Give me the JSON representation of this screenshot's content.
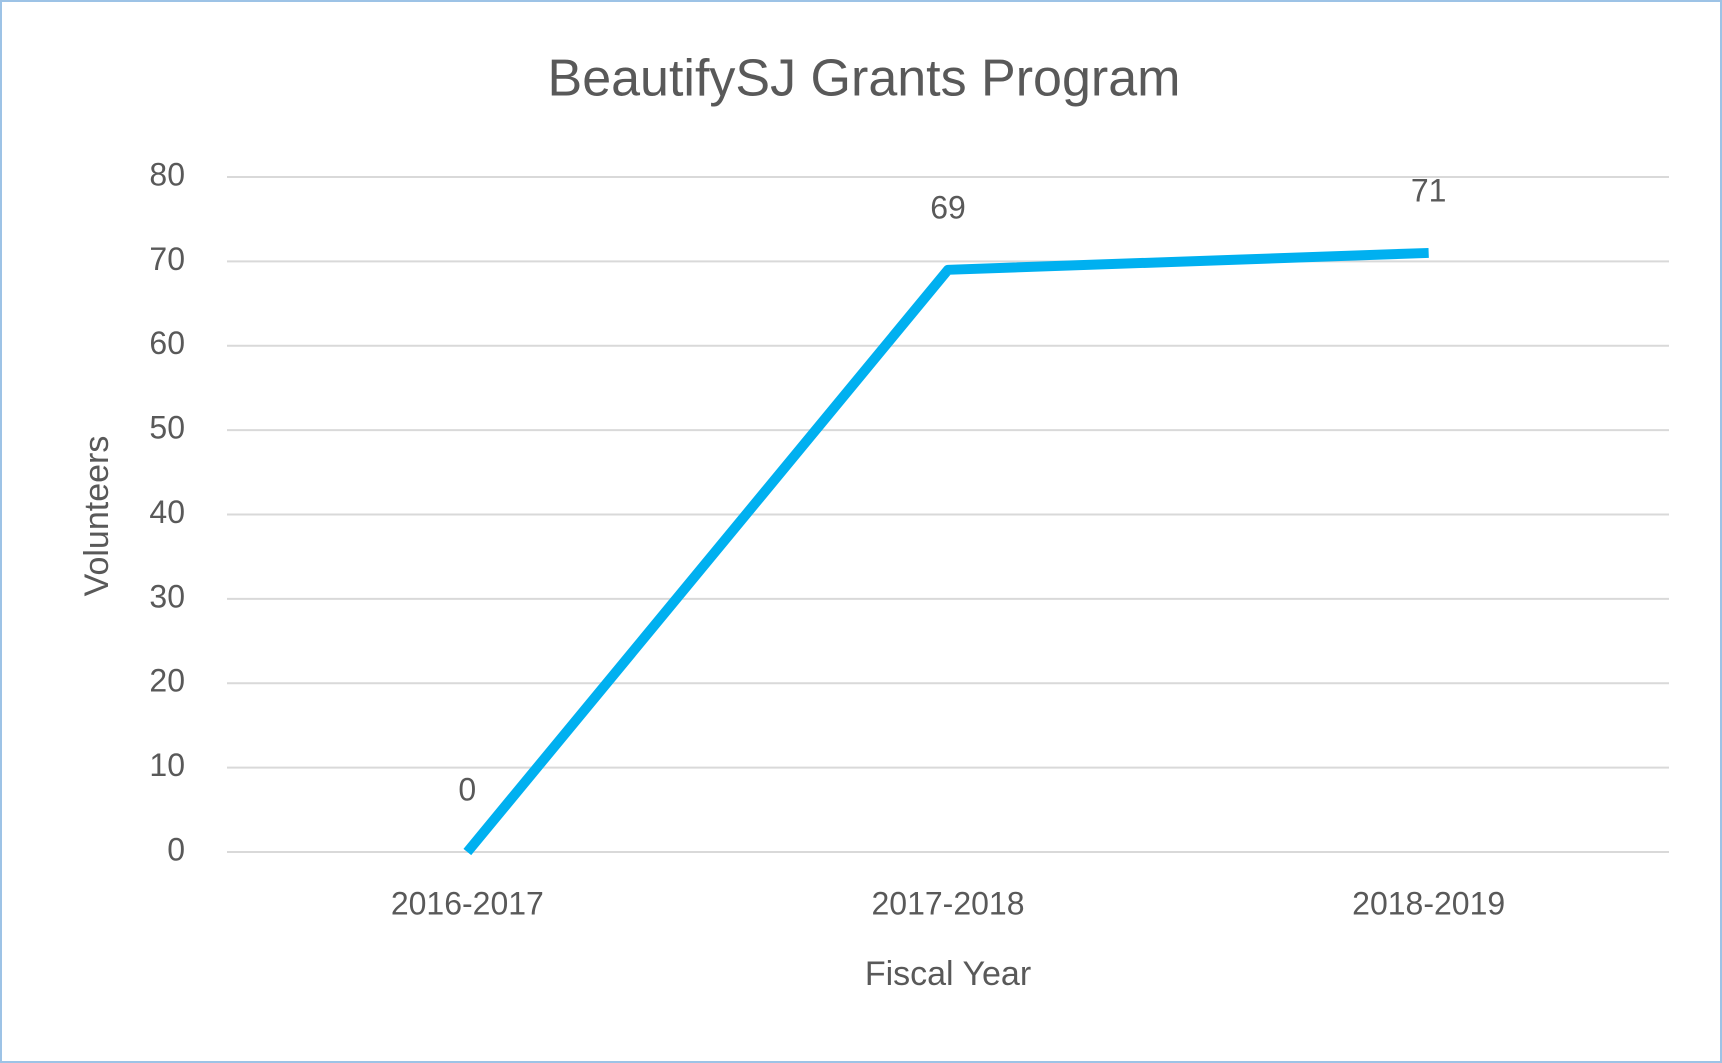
{
  "chart_data": {
    "type": "line",
    "title": "BeautifySJ Grants Program",
    "x_label": "Fiscal Year",
    "y_label": "Volunteers",
    "categories": [
      "2016-2017",
      "2017-2018",
      "2018-2019"
    ],
    "series": [
      {
        "name": "Volunteers",
        "color": "#00b0f0",
        "values": [
          0,
          69,
          71
        ]
      }
    ],
    "ylim": [
      0,
      80
    ],
    "yticks": [
      0,
      10,
      20,
      30,
      40,
      50,
      60,
      70,
      80
    ],
    "grid": true,
    "data_labels": true
  }
}
